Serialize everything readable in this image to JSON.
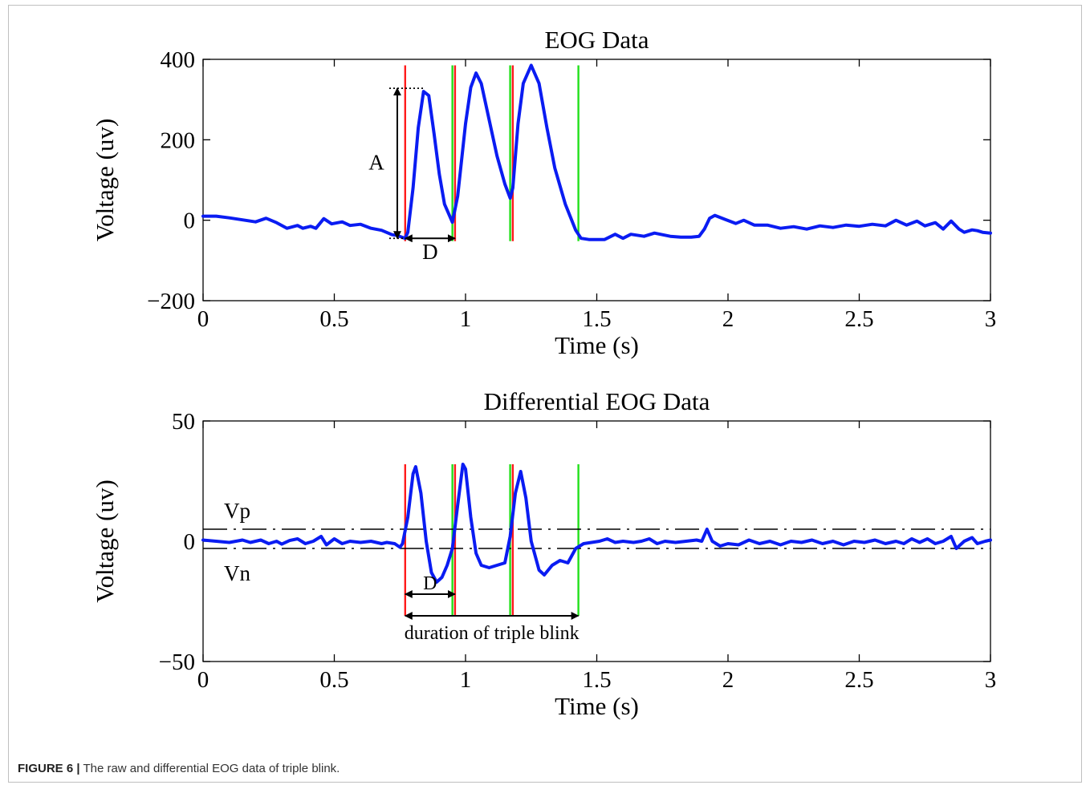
{
  "caption": {
    "label": "FIGURE 6 |",
    "text": " The raw and differential EOG data of triple blink."
  },
  "colors": {
    "series": "#0a1cf2",
    "start_marker": "#ff1a1a",
    "end_marker": "#22e01a"
  },
  "chart_data": [
    {
      "type": "line",
      "title": "EOG Data",
      "xlabel": "Time (s)",
      "ylabel": "Voltage (uv)",
      "xlim": [
        0,
        3
      ],
      "ylim": [
        -200,
        400
      ],
      "xticks": [
        0,
        0.5,
        1,
        1.5,
        2,
        2.5,
        3
      ],
      "xtick_labels": [
        "0",
        "0.5",
        "1",
        "1.5",
        "2",
        "2.5",
        "3"
      ],
      "yticks": [
        -200,
        0,
        200,
        400
      ],
      "ytick_labels": [
        "−200",
        "0",
        "200",
        "400"
      ],
      "grid": false,
      "series": [
        {
          "points": [
            [
              0,
              10
            ],
            [
              0.05,
              10
            ],
            [
              0.1,
              6
            ],
            [
              0.15,
              1
            ],
            [
              0.2,
              -4
            ],
            [
              0.24,
              5
            ],
            [
              0.28,
              -6
            ],
            [
              0.32,
              -20
            ],
            [
              0.36,
              -13
            ],
            [
              0.38,
              -20
            ],
            [
              0.41,
              -15
            ],
            [
              0.43,
              -20
            ],
            [
              0.46,
              4
            ],
            [
              0.49,
              -9
            ],
            [
              0.53,
              -4
            ],
            [
              0.56,
              -13
            ],
            [
              0.6,
              -10
            ],
            [
              0.64,
              -20
            ],
            [
              0.68,
              -25
            ],
            [
              0.72,
              -36
            ],
            [
              0.74,
              -38
            ],
            [
              0.77,
              -45
            ],
            [
              0.78,
              -30
            ],
            [
              0.8,
              80
            ],
            [
              0.82,
              230
            ],
            [
              0.84,
              320
            ],
            [
              0.86,
              310
            ],
            [
              0.88,
              215
            ],
            [
              0.9,
              115
            ],
            [
              0.92,
              40
            ],
            [
              0.95,
              -5
            ],
            [
              0.97,
              60
            ],
            [
              1.0,
              240
            ],
            [
              1.02,
              330
            ],
            [
              1.04,
              366
            ],
            [
              1.06,
              340
            ],
            [
              1.09,
              250
            ],
            [
              1.12,
              160
            ],
            [
              1.15,
              90
            ],
            [
              1.17,
              55
            ],
            [
              1.18,
              80
            ],
            [
              1.2,
              240
            ],
            [
              1.22,
              340
            ],
            [
              1.25,
              385
            ],
            [
              1.28,
              340
            ],
            [
              1.31,
              230
            ],
            [
              1.34,
              130
            ],
            [
              1.38,
              40
            ],
            [
              1.42,
              -25
            ],
            [
              1.44,
              -45
            ],
            [
              1.47,
              -48
            ],
            [
              1.53,
              -48
            ],
            [
              1.57,
              -35
            ],
            [
              1.6,
              -45
            ],
            [
              1.63,
              -35
            ],
            [
              1.68,
              -40
            ],
            [
              1.72,
              -32
            ],
            [
              1.78,
              -40
            ],
            [
              1.82,
              -42
            ],
            [
              1.86,
              -42
            ],
            [
              1.89,
              -40
            ],
            [
              1.91,
              -22
            ],
            [
              1.93,
              5
            ],
            [
              1.95,
              12
            ],
            [
              1.99,
              2
            ],
            [
              2.03,
              -8
            ],
            [
              2.06,
              0
            ],
            [
              2.1,
              -12
            ],
            [
              2.15,
              -12
            ],
            [
              2.2,
              -20
            ],
            [
              2.25,
              -16
            ],
            [
              2.3,
              -22
            ],
            [
              2.35,
              -14
            ],
            [
              2.4,
              -18
            ],
            [
              2.45,
              -12
            ],
            [
              2.5,
              -15
            ],
            [
              2.55,
              -10
            ],
            [
              2.6,
              -14
            ],
            [
              2.64,
              0
            ],
            [
              2.68,
              -12
            ],
            [
              2.72,
              -2
            ],
            [
              2.75,
              -14
            ],
            [
              2.79,
              -6
            ],
            [
              2.82,
              -22
            ],
            [
              2.85,
              -2
            ],
            [
              2.88,
              -22
            ],
            [
              2.9,
              -30
            ],
            [
              2.93,
              -24
            ],
            [
              2.95,
              -26
            ],
            [
              2.97,
              -30
            ],
            [
              3.0,
              -32
            ]
          ]
        }
      ],
      "markers": [
        {
          "x": 0.77,
          "color": "red"
        },
        {
          "x": 0.95,
          "color": "green"
        },
        {
          "x": 0.96,
          "color": "red"
        },
        {
          "x": 1.17,
          "color": "green"
        },
        {
          "x": 1.18,
          "color": "red"
        },
        {
          "x": 1.43,
          "color": "green"
        }
      ],
      "annotations": {
        "amplitude_label": "A",
        "duration_label": "D",
        "amplitude_from_y": -45,
        "amplitude_to_y": 328,
        "amplitude_x": 0.74,
        "duration_from_x": 0.77,
        "duration_to_x": 0.96,
        "duration_y": -45
      }
    },
    {
      "type": "line",
      "title": "Differential EOG Data",
      "xlabel": "Time (s)",
      "ylabel": "Voltage (uv)",
      "xlim": [
        0,
        3
      ],
      "ylim": [
        -50,
        50
      ],
      "xticks": [
        0,
        0.5,
        1,
        1.5,
        2,
        2.5,
        3
      ],
      "xtick_labels": [
        "0",
        "0.5",
        "1",
        "1.5",
        "2",
        "2.5",
        "3"
      ],
      "yticks": [
        -50,
        0,
        50
      ],
      "ytick_labels": [
        "−50",
        "0",
        "50"
      ],
      "grid": false,
      "series": [
        {
          "points": [
            [
              0,
              0.5
            ],
            [
              0.05,
              0
            ],
            [
              0.1,
              -0.5
            ],
            [
              0.15,
              0.5
            ],
            [
              0.18,
              -0.5
            ],
            [
              0.22,
              0.5
            ],
            [
              0.25,
              -1
            ],
            [
              0.28,
              0
            ],
            [
              0.3,
              -1.2
            ],
            [
              0.33,
              0.3
            ],
            [
              0.36,
              1
            ],
            [
              0.39,
              -1
            ],
            [
              0.42,
              0
            ],
            [
              0.45,
              2
            ],
            [
              0.47,
              -1.5
            ],
            [
              0.5,
              1
            ],
            [
              0.53,
              -1
            ],
            [
              0.56,
              0
            ],
            [
              0.6,
              -0.5
            ],
            [
              0.64,
              0
            ],
            [
              0.68,
              -1
            ],
            [
              0.7,
              -0.5
            ],
            [
              0.73,
              -1
            ],
            [
              0.75,
              -2.5
            ],
            [
              0.76,
              -1
            ],
            [
              0.78,
              10
            ],
            [
              0.8,
              28
            ],
            [
              0.81,
              31
            ],
            [
              0.83,
              20
            ],
            [
              0.85,
              0
            ],
            [
              0.87,
              -13
            ],
            [
              0.89,
              -17
            ],
            [
              0.91,
              -15
            ],
            [
              0.93,
              -10
            ],
            [
              0.95,
              -3
            ],
            [
              0.97,
              15
            ],
            [
              0.99,
              32
            ],
            [
              1.0,
              30
            ],
            [
              1.02,
              10
            ],
            [
              1.04,
              -5
            ],
            [
              1.06,
              -10
            ],
            [
              1.09,
              -11
            ],
            [
              1.12,
              -10
            ],
            [
              1.15,
              -9
            ],
            [
              1.17,
              2
            ],
            [
              1.19,
              20
            ],
            [
              1.21,
              29
            ],
            [
              1.23,
              18
            ],
            [
              1.25,
              0
            ],
            [
              1.28,
              -12
            ],
            [
              1.3,
              -14
            ],
            [
              1.33,
              -10
            ],
            [
              1.36,
              -8
            ],
            [
              1.39,
              -9
            ],
            [
              1.42,
              -3
            ],
            [
              1.45,
              -1
            ],
            [
              1.48,
              -0.5
            ],
            [
              1.51,
              0
            ],
            [
              1.54,
              1
            ],
            [
              1.57,
              -0.5
            ],
            [
              1.6,
              0
            ],
            [
              1.64,
              -0.5
            ],
            [
              1.67,
              0
            ],
            [
              1.7,
              1
            ],
            [
              1.73,
              -1
            ],
            [
              1.76,
              0
            ],
            [
              1.8,
              -0.5
            ],
            [
              1.84,
              0
            ],
            [
              1.88,
              0.5
            ],
            [
              1.9,
              0
            ],
            [
              1.92,
              5
            ],
            [
              1.94,
              0
            ],
            [
              1.97,
              -2
            ],
            [
              2.0,
              -1
            ],
            [
              2.04,
              -1.5
            ],
            [
              2.08,
              0.5
            ],
            [
              2.12,
              -1
            ],
            [
              2.16,
              0
            ],
            [
              2.2,
              -1.5
            ],
            [
              2.24,
              0
            ],
            [
              2.28,
              -0.5
            ],
            [
              2.32,
              0.5
            ],
            [
              2.36,
              -1
            ],
            [
              2.4,
              0
            ],
            [
              2.44,
              -1.5
            ],
            [
              2.48,
              0
            ],
            [
              2.52,
              -0.5
            ],
            [
              2.56,
              0.5
            ],
            [
              2.6,
              -1
            ],
            [
              2.64,
              0
            ],
            [
              2.67,
              -1
            ],
            [
              2.7,
              1
            ],
            [
              2.73,
              -0.5
            ],
            [
              2.76,
              1
            ],
            [
              2.79,
              -1
            ],
            [
              2.82,
              0
            ],
            [
              2.85,
              2
            ],
            [
              2.87,
              -3
            ],
            [
              2.9,
              0
            ],
            [
              2.93,
              1.5
            ],
            [
              2.95,
              -1
            ],
            [
              2.98,
              0
            ],
            [
              3.0,
              0.5
            ]
          ]
        }
      ],
      "markers": [
        {
          "x": 0.77,
          "color": "red"
        },
        {
          "x": 0.95,
          "color": "green"
        },
        {
          "x": 0.96,
          "color": "red"
        },
        {
          "x": 1.17,
          "color": "green"
        },
        {
          "x": 1.18,
          "color": "red"
        },
        {
          "x": 1.43,
          "color": "green"
        }
      ],
      "thresholds": [
        {
          "label": "Vp",
          "y": 5
        },
        {
          "label": "Vn",
          "y": -3
        }
      ],
      "annotations": {
        "duration_label": "D",
        "duration_from_x": 0.77,
        "duration_to_x": 0.96,
        "duration_y": -22,
        "triple_label": "duration of triple blink",
        "triple_from_x": 0.77,
        "triple_to_x": 1.43,
        "triple_y": -31
      }
    }
  ]
}
